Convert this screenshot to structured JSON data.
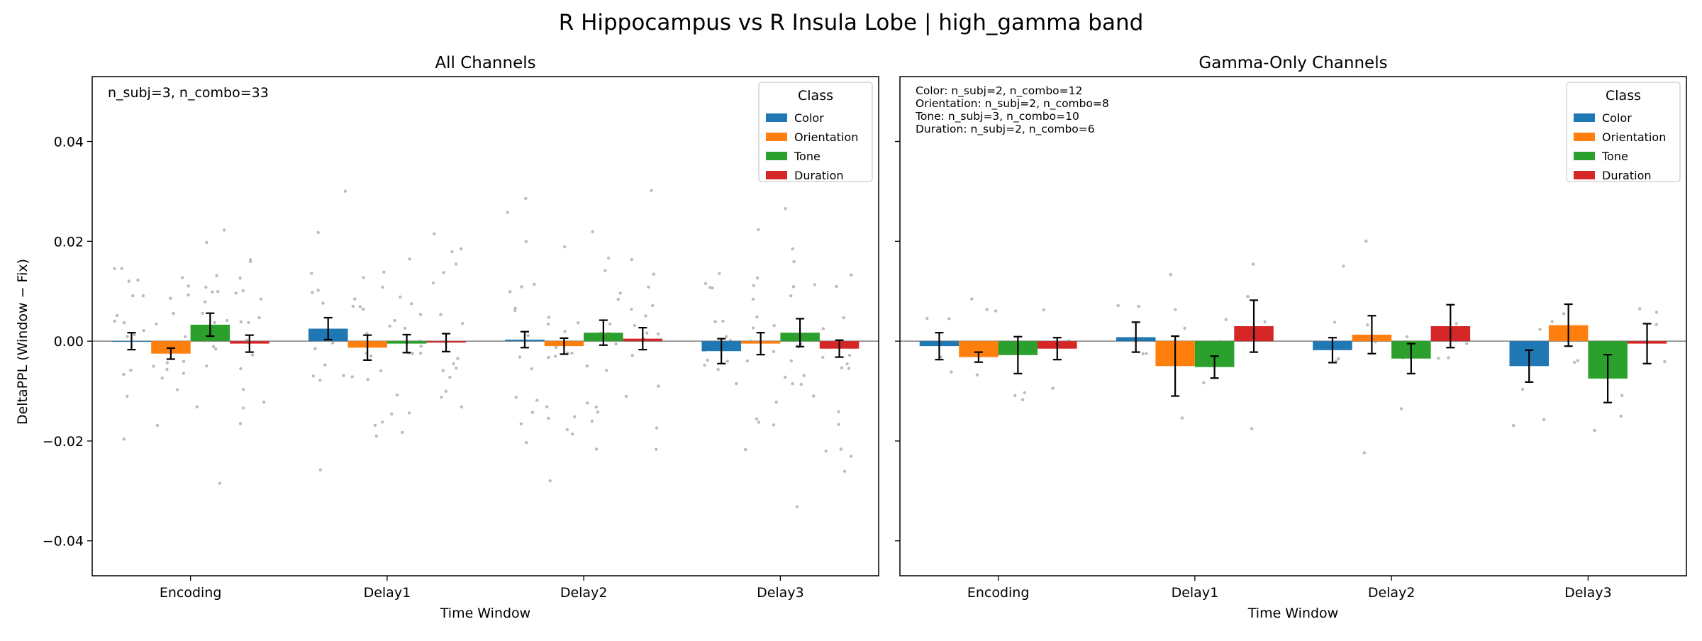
{
  "figure": {
    "suptitle": "R Hippocampus vs R Insula Lobe  |  high_gamma band",
    "ylabel": "DeltaPPL (Window − Fix)",
    "colors": {
      "Color": "#1f77b4",
      "Orientation": "#ff7f0e",
      "Tone": "#2ca02c",
      "Duration": "#d62728",
      "zero_line": "#808080",
      "points": "#bbbbbb",
      "errorbar": "#000000"
    }
  },
  "chart_data": [
    {
      "type": "bar",
      "title": "All Channels",
      "xlabel": "Time Window",
      "ylabel": "DeltaPPL (Window − Fix)",
      "ylim": [
        -0.047,
        0.053
      ],
      "yticks": [
        -0.04,
        -0.02,
        0.0,
        0.02,
        0.04
      ],
      "ytick_labels": [
        "−0.04",
        "−0.02",
        "0.00",
        "0.02",
        "0.04"
      ],
      "categories": [
        "Encoding",
        "Delay1",
        "Delay2",
        "Delay3"
      ],
      "legend": {
        "title": "Class",
        "position": "top-right"
      },
      "annotation": [
        "n_subj=3, n_combo=33"
      ],
      "series": [
        {
          "name": "Color",
          "values": [
            0.0,
            0.0025,
            0.0003,
            -0.002
          ],
          "errors": [
            0.0017,
            0.0022,
            0.0016,
            0.0025
          ]
        },
        {
          "name": "Orientation",
          "values": [
            -0.0025,
            -0.0013,
            -0.001,
            -0.0005
          ],
          "errors": [
            0.0011,
            0.0025,
            0.0016,
            0.0022
          ]
        },
        {
          "name": "Tone",
          "values": [
            0.0033,
            -0.0005,
            0.0017,
            0.0017
          ],
          "errors": [
            0.0023,
            0.0018,
            0.0025,
            0.0028
          ]
        },
        {
          "name": "Duration",
          "values": [
            -0.0005,
            -0.0003,
            0.0005,
            -0.0015
          ],
          "errors": [
            0.0017,
            0.0018,
            0.0022,
            0.0017
          ]
        }
      ]
    },
    {
      "type": "bar",
      "title": "Gamma-Only Channels",
      "xlabel": "Time Window",
      "ylim": [
        -0.047,
        0.053
      ],
      "categories": [
        "Encoding",
        "Delay1",
        "Delay2",
        "Delay3"
      ],
      "legend": {
        "title": "Class",
        "position": "top-right"
      },
      "annotation": [
        "Color: n_subj=2, n_combo=12",
        "Orientation: n_subj=2, n_combo=8",
        "Tone: n_subj=3, n_combo=10",
        "Duration: n_subj=2, n_combo=6"
      ],
      "series": [
        {
          "name": "Color",
          "values": [
            -0.001,
            0.0008,
            -0.0018,
            -0.005
          ],
          "errors": [
            0.0027,
            0.003,
            0.0025,
            0.0032
          ]
        },
        {
          "name": "Orientation",
          "values": [
            -0.0032,
            -0.005,
            0.0013,
            0.0032
          ],
          "errors": [
            0.001,
            0.006,
            0.0038,
            0.0042
          ]
        },
        {
          "name": "Tone",
          "values": [
            -0.0028,
            -0.0052,
            -0.0035,
            -0.0075
          ],
          "errors": [
            0.0037,
            0.0022,
            0.003,
            0.0048
          ]
        },
        {
          "name": "Duration",
          "values": [
            -0.0015,
            0.003,
            0.003,
            -0.0005
          ],
          "errors": [
            0.0022,
            0.0052,
            0.0043,
            0.004
          ]
        }
      ]
    }
  ]
}
